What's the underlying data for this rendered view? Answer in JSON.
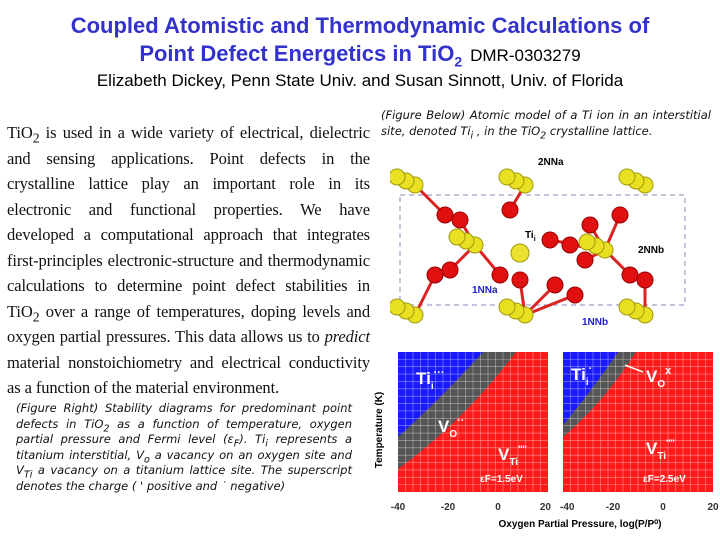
{
  "title": {
    "line1": "Coupled Atomistic and Thermodynamic Calculations of",
    "line2": "Point Defect Energetics in TiO",
    "line2_sub": "2",
    "award": "DMR-0303279",
    "authors": "Elizabeth Dickey, Penn State Univ. and Susan Sinnott, Univ. of Florida"
  },
  "body": {
    "p1": "TiO",
    "p1_sub": "2",
    "p2": " is used in a wide variety of electrical, dielectric and sensing applications. Point defects in the crystalline lattice play an important role in its electronic and functional properties. We have developed a computational approach that integrates first-principles electronic-structure and thermodynamic calculations to determine point defect stabilities in TiO",
    "p2_sub": "2",
    "p3": " over a range of temperatures, doping levels and oxygen partial pressures. This data allows us to ",
    "p3_em": "predict",
    "p4": " material nonstoichiometry and electrical conductivity as a function of the material environment."
  },
  "caption_right": {
    "a": "(Figure Below) Atomic model of a Ti ion in an interstitial site, denoted Ti",
    "a_sub": "i",
    "b": " , in the TiO",
    "b_sub": "2",
    "c": " crystalline lattice."
  },
  "crystal": {
    "labels": [
      "2NNa",
      "Ti",
      "i",
      "2NNb",
      "1NNa",
      "1NNb"
    ]
  },
  "caption_left": {
    "a": "(Figure Right) Stability diagrams for predominant point defects in TiO",
    "a_sub": "2",
    "b": " as a function of temperature, oxygen partial pressure and Fermi level (ε",
    "b_sub": "F",
    "c": ").   Ti",
    "c_sub": "i",
    "d": " represents a titanium interstitial, V",
    "d_sub": "o",
    "e": " a vacancy on an oxygen site and V",
    "e_sub": "Ti",
    "f": " a vacancy on a titanium lattice site.  The superscript denotes the charge ( ' positive and ˙ negative)"
  },
  "diagrams": {
    "ylabel": "Temperature (K)",
    "xlabel": "Oxygen Partial Pressure, log(P/P⁰)",
    "xticks": [
      "-40",
      "-20",
      "0",
      "20"
    ],
    "colors": {
      "ti": "#1a1aff",
      "vo": "#555555",
      "vti": "#ff1a1a"
    },
    "left": {
      "ti": "Ti",
      "ti_sub": "i",
      "ti_sup": "···",
      "vo": "V",
      "vo_sub": "O",
      "vo_sup": "··",
      "vti": "V",
      "vti_sub": "Ti",
      "vti_sup": "′′′′",
      "ef": "εF=1.5eV"
    },
    "right": {
      "ti": "Ti",
      "ti_sub": "i",
      "ti_sup": "·",
      "vo": "V",
      "vo_sub": "O",
      "vo_sup": "x",
      "vti": "V",
      "vti_sub": "Ti",
      "vti_sup": "′′′′",
      "ef": "εF=2.5eV"
    }
  }
}
